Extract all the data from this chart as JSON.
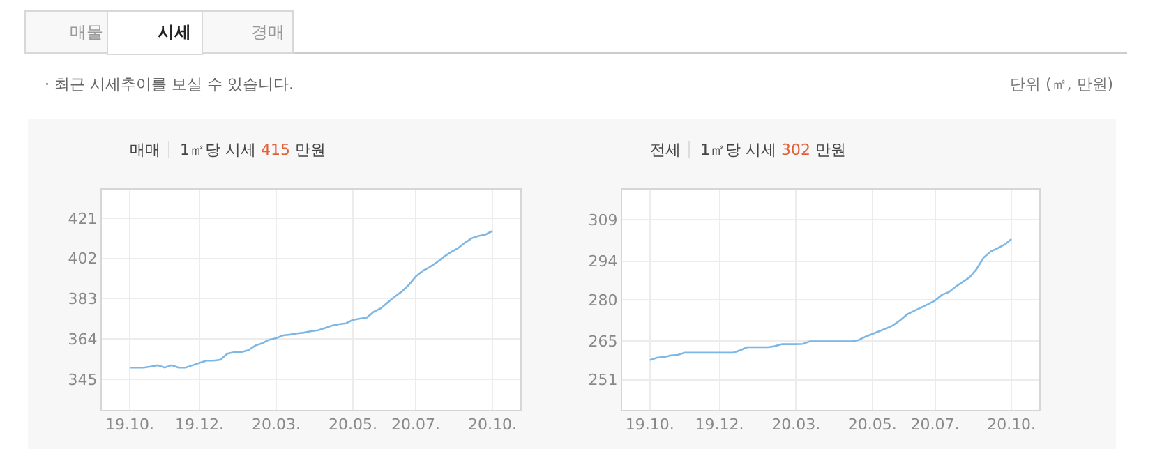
{
  "chart_data": [
    {
      "type": "other",
      "annotations": [
        "매물",
        "시세",
        "경매",
        "· 최근 시세추이를 보실 수 있습니다.",
        "단위 (㎡, 만원)"
      ]
    },
    {
      "type": "line",
      "title": "매매",
      "subtitle": "1㎡당 시세 415 만원",
      "categories": [
        "19.10.",
        null,
        null,
        null,
        null,
        null,
        null,
        null,
        null,
        null,
        "19.12.",
        null,
        null,
        null,
        null,
        null,
        null,
        null,
        null,
        null,
        null,
        "20.03.",
        null,
        null,
        null,
        null,
        null,
        null,
        null,
        null,
        null,
        null,
        "20.05.",
        null,
        null,
        null,
        null,
        null,
        null,
        null,
        null,
        "20.07.",
        null,
        null,
        null,
        null,
        null,
        null,
        null,
        null,
        null,
        null,
        "20.10."
      ],
      "series": [
        {
          "color": "#7db7e6",
          "values": [
            350.5,
            350.5,
            350.5,
            351,
            351.6,
            350.5,
            351.6,
            350.5,
            350.5,
            351.6,
            352.7,
            353.8,
            353.8,
            354.2,
            357.1,
            357.8,
            357.8,
            358.7,
            360.9,
            362,
            363.7,
            364.4,
            365.7,
            366.1,
            366.6,
            367,
            367.7,
            368.1,
            369.2,
            370.3,
            371,
            371.4,
            373,
            373.6,
            374.1,
            376.9,
            378.5,
            381.3,
            384,
            386.4,
            389.5,
            393.5,
            396.1,
            397.9,
            400.1,
            402.7,
            404.9,
            406.7,
            409.3,
            411.5,
            412.6,
            413.3,
            415
          ]
        }
      ],
      "ylim": [
        330.5,
        434.5
      ],
      "yticks": [
        345,
        364,
        383,
        402,
        421
      ],
      "grid": true,
      "marker": "none",
      "line_style": "solid"
    },
    {
      "type": "line",
      "title": "전세",
      "subtitle": "1㎡당 시세 302 만원",
      "categories": [
        "19.10.",
        null,
        null,
        null,
        null,
        null,
        null,
        null,
        null,
        null,
        "19.12.",
        null,
        null,
        null,
        null,
        null,
        null,
        null,
        null,
        null,
        null,
        "20.03.",
        null,
        null,
        null,
        null,
        null,
        null,
        null,
        null,
        null,
        null,
        "20.05.",
        null,
        null,
        null,
        null,
        null,
        null,
        null,
        null,
        "20.07.",
        null,
        null,
        null,
        null,
        null,
        null,
        null,
        null,
        null,
        null,
        "20.10."
      ],
      "series": [
        {
          "color": "#7db7e6",
          "values": [
            258.1,
            259,
            259.2,
            259.8,
            260,
            260.8,
            260.8,
            260.8,
            260.8,
            260.8,
            260.8,
            260.8,
            260.8,
            261.7,
            262.8,
            262.8,
            262.8,
            262.8,
            263.2,
            263.9,
            263.9,
            263.9,
            264,
            264.9,
            264.9,
            264.9,
            264.9,
            264.9,
            264.9,
            264.9,
            265.4,
            266.6,
            267.6,
            268.6,
            269.6,
            270.8,
            272.6,
            274.7,
            276,
            277.2,
            278.4,
            279.7,
            281.8,
            282.8,
            284.8,
            286.5,
            288.2,
            291.2,
            295.3,
            297.5,
            298.7,
            300,
            302
          ]
        }
      ],
      "ylim": [
        240,
        320
      ],
      "yticks": [
        251,
        265,
        280,
        294,
        309
      ],
      "grid": true,
      "marker": "none",
      "line_style": "solid"
    }
  ]
}
